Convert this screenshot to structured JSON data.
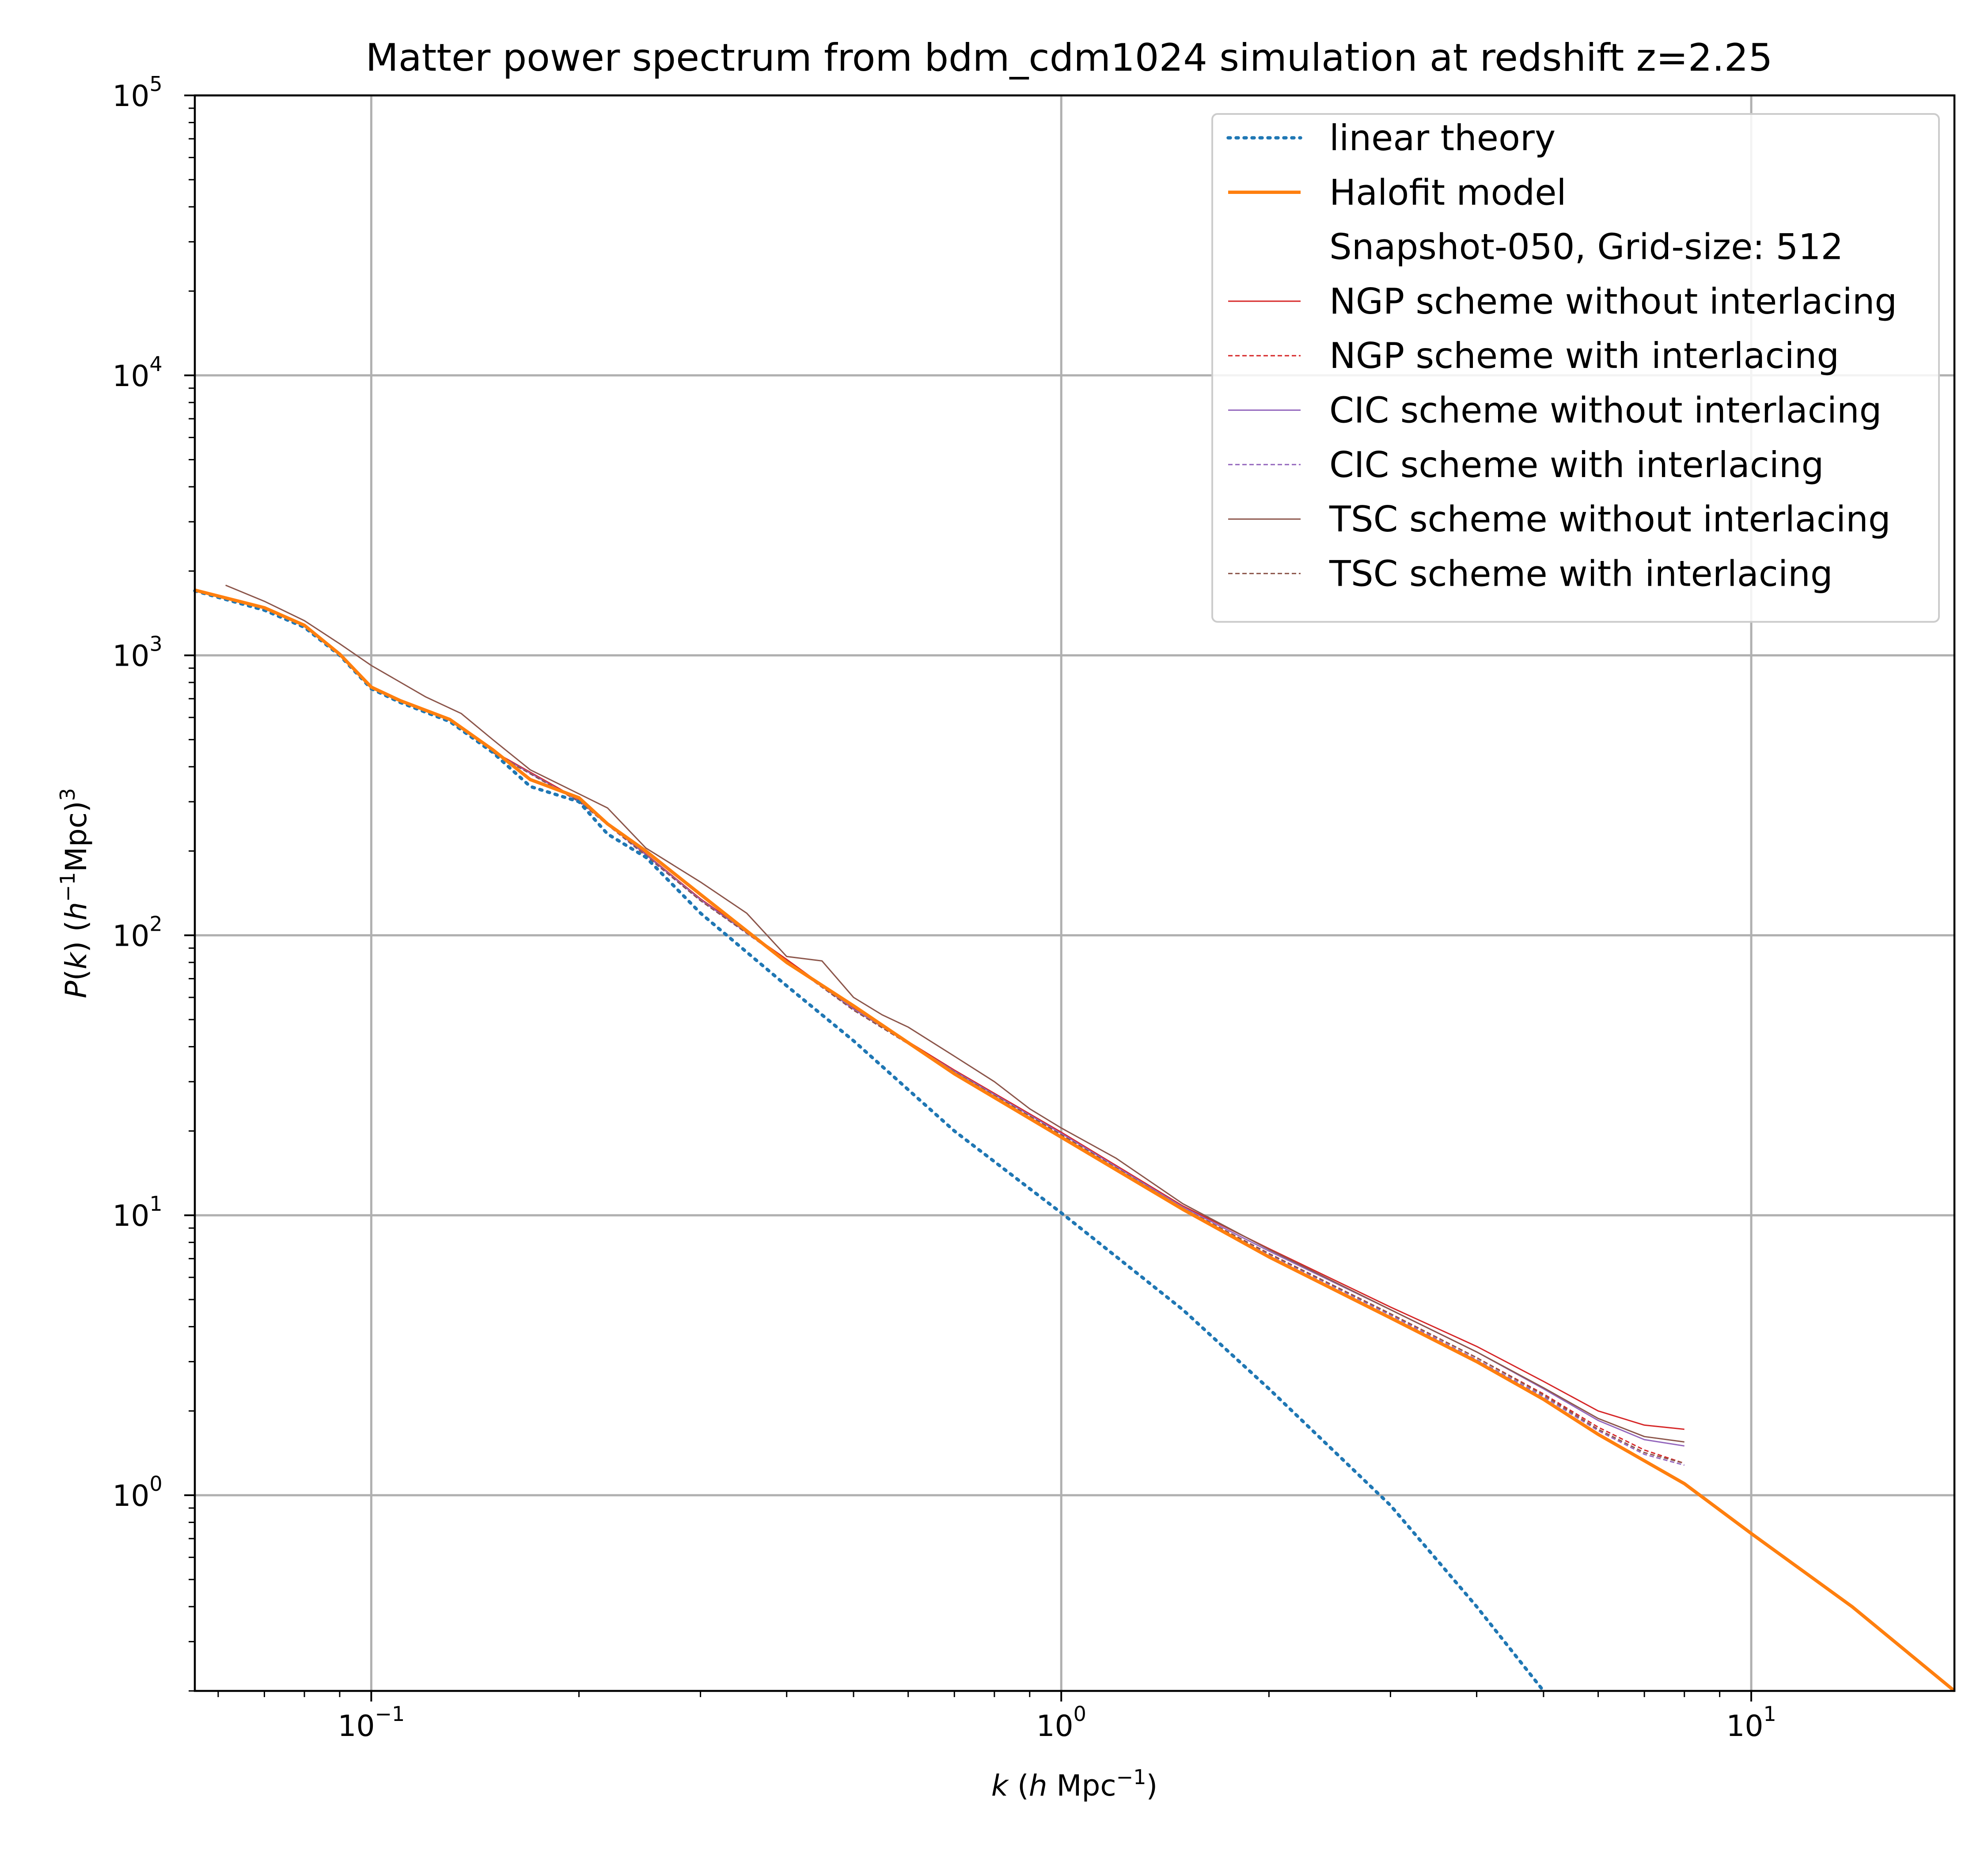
{
  "chart_data": {
    "type": "line",
    "title": "Matter power spectrum from bdm_cdm1024 simulation at redshift z=2.25",
    "xlabel": "k  (h Mpc−1)",
    "ylabel": "P(k)  (h−1Mpc)3",
    "x_scale": "log",
    "y_scale": "log",
    "xlim": [
      0.0555,
      19.7
    ],
    "ylim": [
      0.2,
      100000
    ],
    "grid": true,
    "legend_position": "upper-right",
    "x_ticks": [
      {
        "value": 0.1,
        "base": "10",
        "exp": "−1"
      },
      {
        "value": 1,
        "base": "10",
        "exp": "0"
      },
      {
        "value": 10,
        "base": "10",
        "exp": "1"
      }
    ],
    "y_ticks": [
      {
        "value": 1,
        "base": "10",
        "exp": "0"
      },
      {
        "value": 10,
        "base": "10",
        "exp": "1"
      },
      {
        "value": 100,
        "base": "10",
        "exp": "2"
      },
      {
        "value": 1000,
        "base": "10",
        "exp": "3"
      },
      {
        "value": 10000,
        "base": "10",
        "exp": "4"
      },
      {
        "value": 100000,
        "base": "10",
        "exp": "5"
      }
    ],
    "series": [
      {
        "name": "linear theory",
        "color": "#1f77b4",
        "style": "dotted",
        "width": "thick",
        "points": [
          [
            0.0555,
            1700
          ],
          [
            0.07,
            1450
          ],
          [
            0.08,
            1260
          ],
          [
            0.09,
            1000
          ],
          [
            0.1,
            760
          ],
          [
            0.11,
            680
          ],
          [
            0.13,
            580
          ],
          [
            0.15,
            450
          ],
          [
            0.17,
            340
          ],
          [
            0.2,
            300
          ],
          [
            0.22,
            230
          ],
          [
            0.25,
            190
          ],
          [
            0.3,
            120
          ],
          [
            0.4,
            66
          ],
          [
            0.5,
            42
          ],
          [
            0.7,
            20
          ],
          [
            1.0,
            10.2
          ],
          [
            1.5,
            4.6
          ],
          [
            2.0,
            2.4
          ],
          [
            3.0,
            0.92
          ],
          [
            4.0,
            0.4
          ],
          [
            5.0,
            0.2
          ]
        ]
      },
      {
        "name": "Halofit model",
        "color": "#ff7f0e",
        "style": "solid",
        "width": "thick",
        "points": [
          [
            0.0555,
            1710
          ],
          [
            0.07,
            1480
          ],
          [
            0.08,
            1280
          ],
          [
            0.09,
            1010
          ],
          [
            0.1,
            770
          ],
          [
            0.11,
            690
          ],
          [
            0.13,
            590
          ],
          [
            0.15,
            460
          ],
          [
            0.17,
            360
          ],
          [
            0.2,
            310
          ],
          [
            0.22,
            250
          ],
          [
            0.25,
            200
          ],
          [
            0.3,
            140
          ],
          [
            0.4,
            80
          ],
          [
            0.5,
            56
          ],
          [
            0.7,
            32
          ],
          [
            1.0,
            19
          ],
          [
            1.5,
            10.5
          ],
          [
            2.0,
            7.1
          ],
          [
            3.0,
            4.3
          ],
          [
            4.0,
            3.0
          ],
          [
            5.0,
            2.2
          ],
          [
            6.0,
            1.65
          ],
          [
            8.0,
            1.1
          ],
          [
            10.0,
            0.73
          ],
          [
            14.0,
            0.4
          ],
          [
            19.7,
            0.2
          ]
        ]
      },
      {
        "name": "Snapshot-050, Grid-size: 512",
        "color": "#ffffff",
        "style": "none",
        "width": "thin",
        "points": []
      },
      {
        "name": "NGP scheme without interlacing",
        "color": "#d62728",
        "style": "solid",
        "width": "thin",
        "points": [
          [
            0.15,
            455
          ],
          [
            0.2,
            305
          ],
          [
            0.25,
            195
          ],
          [
            0.3,
            135
          ],
          [
            0.4,
            82
          ],
          [
            0.5,
            55
          ],
          [
            0.7,
            33
          ],
          [
            1.0,
            19.8
          ],
          [
            1.5,
            10.8
          ],
          [
            2.0,
            7.6
          ],
          [
            3.0,
            4.7
          ],
          [
            4.0,
            3.4
          ],
          [
            5.0,
            2.55
          ],
          [
            6.0,
            2.0
          ],
          [
            7.0,
            1.78
          ],
          [
            8.0,
            1.72
          ]
        ]
      },
      {
        "name": "NGP scheme with interlacing",
        "color": "#d62728",
        "style": "dashed",
        "width": "thin",
        "points": [
          [
            0.15,
            452
          ],
          [
            0.2,
            302
          ],
          [
            0.25,
            193
          ],
          [
            0.3,
            133
          ],
          [
            0.4,
            81
          ],
          [
            0.5,
            54
          ],
          [
            0.7,
            32.5
          ],
          [
            1.0,
            19.4
          ],
          [
            1.5,
            10.6
          ],
          [
            2.0,
            7.3
          ],
          [
            3.0,
            4.45
          ],
          [
            4.0,
            3.1
          ],
          [
            5.0,
            2.3
          ],
          [
            6.0,
            1.75
          ],
          [
            7.0,
            1.45
          ],
          [
            8.0,
            1.3
          ]
        ]
      },
      {
        "name": "CIC scheme without interlacing",
        "color": "#9467bd",
        "style": "solid",
        "width": "thin",
        "points": [
          [
            0.15,
            452
          ],
          [
            0.2,
            302
          ],
          [
            0.25,
            194
          ],
          [
            0.3,
            134
          ],
          [
            0.4,
            81
          ],
          [
            0.5,
            54.5
          ],
          [
            0.7,
            32.7
          ],
          [
            1.0,
            19.6
          ],
          [
            1.5,
            10.7
          ],
          [
            2.0,
            7.45
          ],
          [
            3.0,
            4.6
          ],
          [
            4.0,
            3.25
          ],
          [
            5.0,
            2.4
          ],
          [
            6.0,
            1.85
          ],
          [
            7.0,
            1.58
          ],
          [
            8.0,
            1.5
          ]
        ]
      },
      {
        "name": "CIC scheme with interlacing",
        "color": "#9467bd",
        "style": "dashed",
        "width": "thin",
        "points": [
          [
            0.15,
            450
          ],
          [
            0.2,
            300
          ],
          [
            0.25,
            192
          ],
          [
            0.3,
            133
          ],
          [
            0.4,
            80.5
          ],
          [
            0.5,
            54
          ],
          [
            0.7,
            32.4
          ],
          [
            1.0,
            19.3
          ],
          [
            1.5,
            10.55
          ],
          [
            2.0,
            7.25
          ],
          [
            3.0,
            4.4
          ],
          [
            4.0,
            3.05
          ],
          [
            5.0,
            2.25
          ],
          [
            6.0,
            1.7
          ],
          [
            7.0,
            1.4
          ],
          [
            8.0,
            1.28
          ]
        ]
      },
      {
        "name": "TSC scheme without interlacing",
        "color": "#8c564b",
        "style": "solid",
        "width": "thin",
        "points": [
          [
            0.0615,
            1780
          ],
          [
            0.07,
            1560
          ],
          [
            0.08,
            1330
          ],
          [
            0.09,
            1100
          ],
          [
            0.1,
            920
          ],
          [
            0.12,
            710
          ],
          [
            0.135,
            620
          ],
          [
            0.15,
            500
          ],
          [
            0.17,
            390
          ],
          [
            0.2,
            320
          ],
          [
            0.22,
            285
          ],
          [
            0.25,
            205
          ],
          [
            0.3,
            155
          ],
          [
            0.35,
            120
          ],
          [
            0.4,
            84
          ],
          [
            0.45,
            81
          ],
          [
            0.5,
            60
          ],
          [
            0.55,
            52
          ],
          [
            0.6,
            47
          ],
          [
            0.7,
            37
          ],
          [
            0.8,
            30
          ],
          [
            0.9,
            24
          ],
          [
            1.0,
            20.5
          ],
          [
            1.2,
            16
          ],
          [
            1.5,
            11
          ],
          [
            2.0,
            7.55
          ],
          [
            3.0,
            4.6
          ],
          [
            4.0,
            3.25
          ],
          [
            5.0,
            2.42
          ],
          [
            6.0,
            1.88
          ],
          [
            7.0,
            1.62
          ],
          [
            8.0,
            1.55
          ]
        ]
      },
      {
        "name": "TSC scheme with interlacing",
        "color": "#8c564b",
        "style": "dashed",
        "width": "thin",
        "points": [
          [
            0.15,
            450
          ],
          [
            0.2,
            301
          ],
          [
            0.25,
            193
          ],
          [
            0.3,
            133
          ],
          [
            0.4,
            81
          ],
          [
            0.5,
            54
          ],
          [
            0.7,
            32.5
          ],
          [
            1.0,
            19.4
          ],
          [
            1.5,
            10.6
          ],
          [
            2.0,
            7.3
          ],
          [
            3.0,
            4.45
          ],
          [
            4.0,
            3.1
          ],
          [
            5.0,
            2.28
          ],
          [
            6.0,
            1.72
          ],
          [
            7.0,
            1.42
          ],
          [
            8.0,
            1.3
          ]
        ]
      }
    ]
  }
}
